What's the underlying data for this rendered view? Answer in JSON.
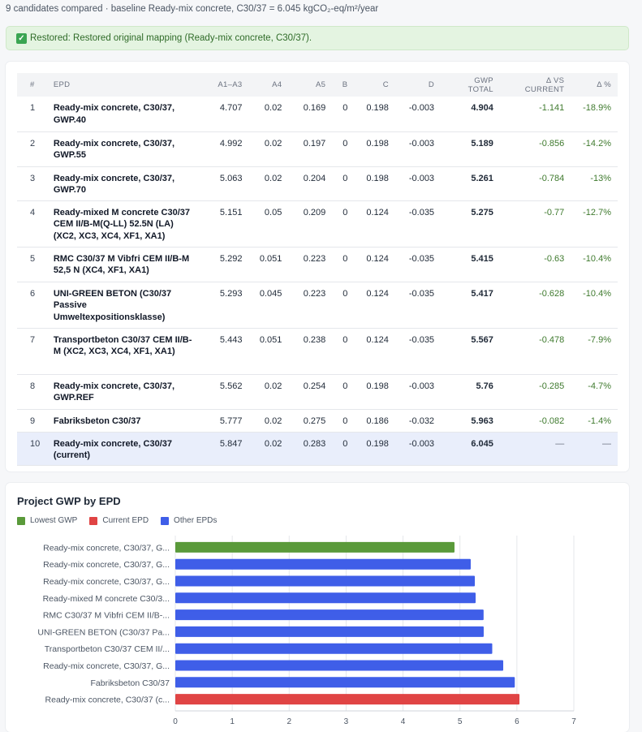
{
  "summary": "9 candidates compared · baseline Ready-mix concrete, C30/37 = 6.045 kgCO₂-eq/m²/year",
  "alert": {
    "icon": "check-icon",
    "text": "Restored: Restored original mapping (Ready-mix concrete, C30/37)."
  },
  "table": {
    "headers": [
      "#",
      "EPD",
      "A1–A3",
      "A4",
      "A5",
      "B",
      "C",
      "D",
      "GWP TOTAL",
      "Δ VS CURRENT",
      "Δ %"
    ],
    "rows": [
      {
        "n": "1",
        "epd": "Ready-mix concrete, C30/37, GWP.40",
        "a13": "4.707",
        "a4": "0.02",
        "a5": "0.169",
        "b": "0",
        "c": "0.198",
        "d": "-0.003",
        "gwp": "4.904",
        "dvc": "-1.141",
        "dpct": "-18.9%"
      },
      {
        "n": "2",
        "epd": "Ready-mix concrete, C30/37, GWP.55",
        "a13": "4.992",
        "a4": "0.02",
        "a5": "0.197",
        "b": "0",
        "c": "0.198",
        "d": "-0.003",
        "gwp": "5.189",
        "dvc": "-0.856",
        "dpct": "-14.2%"
      },
      {
        "n": "3",
        "epd": "Ready-mix concrete, C30/37, GWP.70",
        "a13": "5.063",
        "a4": "0.02",
        "a5": "0.204",
        "b": "0",
        "c": "0.198",
        "d": "-0.003",
        "gwp": "5.261",
        "dvc": "-0.784",
        "dpct": "-13%"
      },
      {
        "n": "4",
        "epd": "Ready-mixed M concrete C30/37 CEM II/B-M(Q-LL) 52.5N (LA) (XC2, XC3, XC4, XF1, XA1)",
        "a13": "5.151",
        "a4": "0.05",
        "a5": "0.209",
        "b": "0",
        "c": "0.124",
        "d": "-0.035",
        "gwp": "5.275",
        "dvc": "-0.77",
        "dpct": "-12.7%"
      },
      {
        "n": "5",
        "epd": "RMC C30/37 M Vibfri CEM II/B-M 52,5 N (XC4, XF1, XA1)",
        "a13": "5.292",
        "a4": "0.051",
        "a5": "0.223",
        "b": "0",
        "c": "0.124",
        "d": "-0.035",
        "gwp": "5.415",
        "dvc": "-0.63",
        "dpct": "-10.4%"
      },
      {
        "n": "6",
        "epd": "UNI-GREEN BETON (C30/37 Passive Umweltexpositionsklasse)",
        "a13": "5.293",
        "a4": "0.045",
        "a5": "0.223",
        "b": "0",
        "c": "0.124",
        "d": "-0.035",
        "gwp": "5.417",
        "dvc": "-0.628",
        "dpct": "-10.4%"
      },
      {
        "n": "7",
        "epd": "Transportbeton C30/37 CEM II/B-M (XC2, XC3, XC4, XF1, XA1)",
        "a13": "5.443",
        "a4": "0.051",
        "a5": "0.238",
        "b": "0",
        "c": "0.124",
        "d": "-0.035",
        "gwp": "5.567",
        "dvc": "-0.478",
        "dpct": "-7.9%"
      },
      {
        "n": "8",
        "epd": "Ready-mix concrete, C30/37, GWP.REF",
        "a13": "5.562",
        "a4": "0.02",
        "a5": "0.254",
        "b": "0",
        "c": "0.198",
        "d": "-0.003",
        "gwp": "5.76",
        "dvc": "-0.285",
        "dpct": "-4.7%"
      },
      {
        "n": "9",
        "epd": "Fabriksbeton C30/37",
        "a13": "5.777",
        "a4": "0.02",
        "a5": "0.275",
        "b": "0",
        "c": "0.186",
        "d": "-0.032",
        "gwp": "5.963",
        "dvc": "-0.082",
        "dpct": "-1.4%"
      },
      {
        "n": "10",
        "epd": "Ready-mix concrete, C30/37 (current)",
        "a13": "5.847",
        "a4": "0.02",
        "a5": "0.283",
        "b": "0",
        "c": "0.198",
        "d": "-0.003",
        "gwp": "6.045",
        "dvc": "—",
        "dpct": "—",
        "current": true
      }
    ]
  },
  "chart": {
    "title": "Project GWP by EPD",
    "legend": [
      {
        "label": "Lowest GWP",
        "color": "#5a9a3a"
      },
      {
        "label": "Current EPD",
        "color": "#e04444"
      },
      {
        "label": "Other EPDs",
        "color": "#3f5ee8"
      }
    ]
  },
  "chart_data": {
    "type": "bar",
    "orientation": "horizontal",
    "title": "Project GWP by EPD",
    "categories": [
      "Ready-mix concrete, C30/37, G...",
      "Ready-mix concrete, C30/37, G...",
      "Ready-mix concrete, C30/37, G...",
      "Ready-mixed M concrete C30/3...",
      "RMC C30/37 M Vibfri CEM II/B-...",
      "UNI-GREEN BETON (C30/37 Pa...",
      "Transportbeton C30/37 CEM II/...",
      "Ready-mix concrete, C30/37, G...",
      "Fabriksbeton C30/37",
      "Ready-mix concrete, C30/37 (c..."
    ],
    "values": [
      4.904,
      5.189,
      5.261,
      5.275,
      5.415,
      5.417,
      5.567,
      5.76,
      5.963,
      6.045
    ],
    "bar_kinds": [
      "lowest",
      "other",
      "other",
      "other",
      "other",
      "other",
      "other",
      "other",
      "other",
      "current"
    ],
    "colors": {
      "lowest": "#5a9a3a",
      "current": "#e04444",
      "other": "#3f5ee8"
    },
    "xlim": [
      0,
      7
    ],
    "xticks": [
      "0",
      "1",
      "2",
      "3",
      "4",
      "5",
      "6",
      "7"
    ],
    "grid": true,
    "legend_position": "top-left"
  }
}
